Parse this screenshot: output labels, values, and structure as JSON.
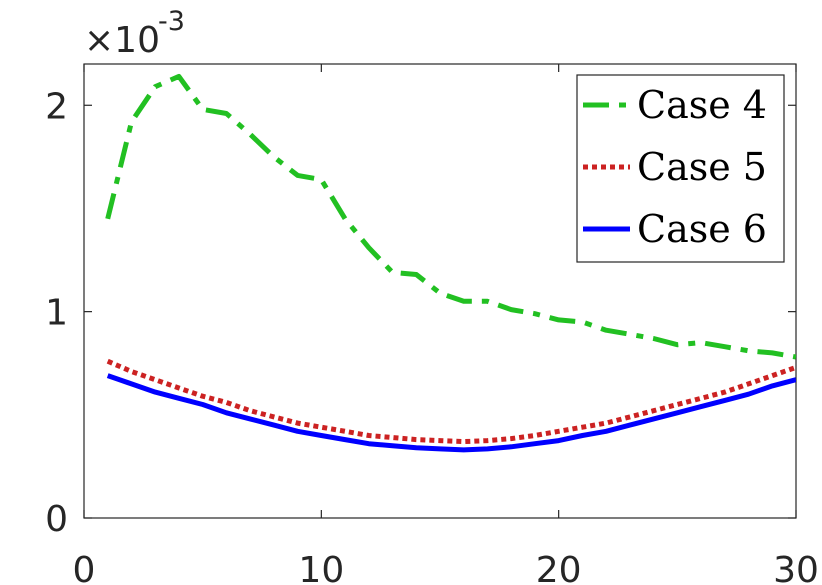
{
  "chart_data": {
    "type": "line",
    "xlim": [
      0,
      30
    ],
    "ylim": [
      0,
      2.2
    ],
    "y_multiplier_label": {
      "base": "×10",
      "exponent": "-3"
    },
    "x_ticks": [
      0,
      10,
      20,
      30
    ],
    "x_tick_labels": [
      "0",
      "10",
      "20",
      "30"
    ],
    "y_ticks": [
      0,
      1,
      2
    ],
    "y_tick_labels": [
      "0",
      "1",
      "2"
    ],
    "grid": false,
    "legend_position": "top-right",
    "series": [
      {
        "name": "Case 4",
        "color": "#22c022",
        "style": "dashdot",
        "x": [
          1,
          2,
          3,
          4,
          5,
          6,
          7,
          8,
          9,
          10,
          11,
          12,
          13,
          14,
          15,
          16,
          17,
          18,
          19,
          20,
          21,
          22,
          23,
          24,
          25,
          26,
          27,
          28,
          29,
          30
        ],
        "y": [
          1.45,
          1.92,
          2.09,
          2.14,
          1.98,
          1.96,
          1.86,
          1.75,
          1.66,
          1.64,
          1.45,
          1.31,
          1.19,
          1.18,
          1.09,
          1.05,
          1.05,
          1.01,
          0.99,
          0.96,
          0.95,
          0.91,
          0.89,
          0.87,
          0.84,
          0.85,
          0.83,
          0.81,
          0.8,
          0.78
        ]
      },
      {
        "name": "Case 5",
        "color": "#cc2222",
        "style": "dotted",
        "x": [
          1,
          2,
          3,
          4,
          5,
          6,
          7,
          8,
          9,
          10,
          11,
          12,
          13,
          14,
          15,
          16,
          17,
          18,
          19,
          20,
          21,
          22,
          23,
          24,
          25,
          26,
          27,
          28,
          29,
          30
        ],
        "y": [
          0.76,
          0.71,
          0.67,
          0.63,
          0.59,
          0.56,
          0.52,
          0.49,
          0.46,
          0.44,
          0.42,
          0.4,
          0.39,
          0.38,
          0.375,
          0.37,
          0.375,
          0.385,
          0.4,
          0.42,
          0.44,
          0.46,
          0.49,
          0.52,
          0.55,
          0.58,
          0.61,
          0.65,
          0.69,
          0.73
        ]
      },
      {
        "name": "Case 6",
        "color": "#0000ff",
        "style": "solid",
        "x": [
          1,
          2,
          3,
          4,
          5,
          6,
          7,
          8,
          9,
          10,
          11,
          12,
          13,
          14,
          15,
          16,
          17,
          18,
          19,
          20,
          21,
          22,
          23,
          24,
          25,
          26,
          27,
          28,
          29,
          30
        ],
        "y": [
          0.69,
          0.65,
          0.61,
          0.58,
          0.55,
          0.51,
          0.48,
          0.45,
          0.42,
          0.4,
          0.38,
          0.36,
          0.35,
          0.34,
          0.335,
          0.33,
          0.335,
          0.345,
          0.36,
          0.375,
          0.4,
          0.42,
          0.45,
          0.48,
          0.51,
          0.54,
          0.57,
          0.6,
          0.64,
          0.67
        ]
      }
    ]
  }
}
